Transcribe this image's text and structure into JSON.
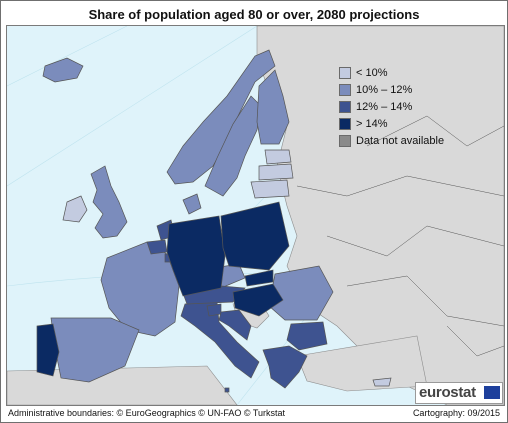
{
  "title": "Share of population aged 80 or over, 2080 projections",
  "legend": [
    {
      "label": "< 10%",
      "color": "#c3cbe0"
    },
    {
      "label": "10% – 12%",
      "color": "#7b8cbc"
    },
    {
      "label": "12% – 14%",
      "color": "#3e5390"
    },
    {
      "label": "> 14%",
      "color": "#0b2a63"
    },
    {
      "label": "Data not available",
      "color": "#8a8a8a"
    }
  ],
  "colors": {
    "sea": "#dff3fa",
    "non_eu_land": "#d9d9d9",
    "border": "#555555"
  },
  "footer": {
    "left": "Administrative boundaries: © EuroGeographics © UN-FAO © Turkstat",
    "right": "Cartography: 09/2015"
  },
  "logo": {
    "text": "eurostat",
    "icon": "eu-flag-icon"
  },
  "regions": [
    {
      "name": "Ireland",
      "class": "< 10%"
    },
    {
      "name": "Cyprus",
      "class": "< 10%"
    },
    {
      "name": "Estonia",
      "class": "< 10%"
    },
    {
      "name": "Latvia",
      "class": "< 10%"
    },
    {
      "name": "Lithuania",
      "class": "< 10%"
    },
    {
      "name": "United Kingdom",
      "class": "10% – 12%"
    },
    {
      "name": "France",
      "class": "10% – 12%"
    },
    {
      "name": "Spain",
      "class": "10% – 12%"
    },
    {
      "name": "Norway",
      "class": "10% – 12%"
    },
    {
      "name": "Sweden",
      "class": "10% – 12%"
    },
    {
      "name": "Finland",
      "class": "10% – 12%"
    },
    {
      "name": "Denmark",
      "class": "10% – 12%"
    },
    {
      "name": "Iceland",
      "class": "10% – 12%"
    },
    {
      "name": "Romania",
      "class": "10% – 12%"
    },
    {
      "name": "Czech Republic",
      "class": "10% – 12%"
    },
    {
      "name": "Netherlands",
      "class": "12% – 14%"
    },
    {
      "name": "Belgium",
      "class": "12% – 14%"
    },
    {
      "name": "Italy",
      "class": "12% – 14%"
    },
    {
      "name": "Greece",
      "class": "12% – 14%"
    },
    {
      "name": "Austria",
      "class": "12% – 14%"
    },
    {
      "name": "Slovenia",
      "class": "12% – 14%"
    },
    {
      "name": "Croatia",
      "class": "12% – 14%"
    },
    {
      "name": "Bulgaria",
      "class": "12% – 14%"
    },
    {
      "name": "Luxembourg",
      "class": "12% – 14%"
    },
    {
      "name": "Malta",
      "class": "12% – 14%"
    },
    {
      "name": "Germany",
      "class": "> 14%"
    },
    {
      "name": "Poland",
      "class": "> 14%"
    },
    {
      "name": "Portugal",
      "class": "> 14%"
    },
    {
      "name": "Slovakia",
      "class": "> 14%"
    },
    {
      "name": "Hungary",
      "class": "> 14%"
    }
  ]
}
